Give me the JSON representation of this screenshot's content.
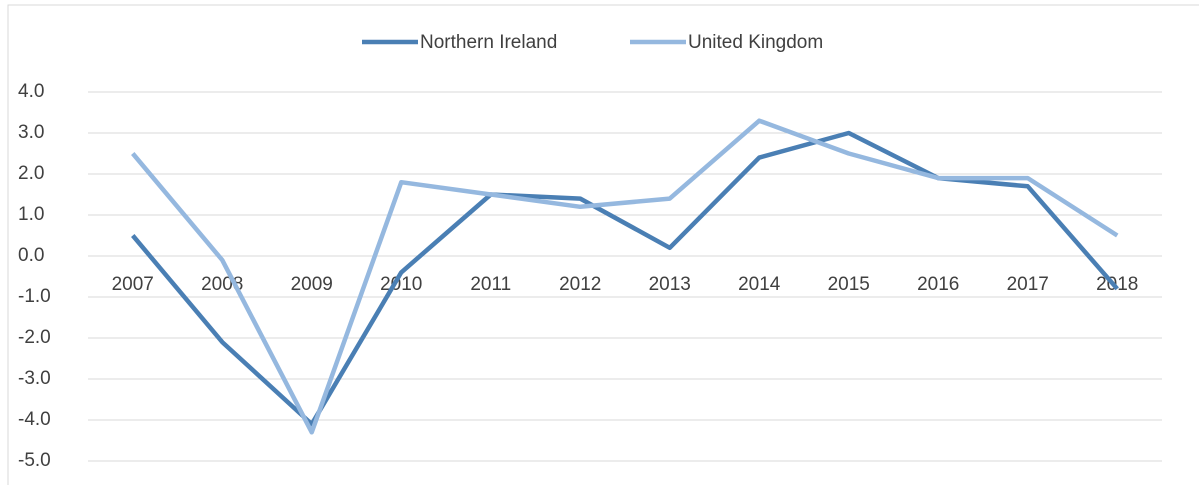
{
  "chart_data": {
    "type": "line",
    "categories": [
      "2007",
      "2008",
      "2009",
      "2010",
      "2011",
      "2012",
      "2013",
      "2014",
      "2015",
      "2016",
      "2017",
      "2018"
    ],
    "series": [
      {
        "name": "Northern Ireland",
        "color": "#4a7fb4",
        "values": [
          0.5,
          -2.1,
          -4.1,
          -0.4,
          1.5,
          1.4,
          0.2,
          2.4,
          3.0,
          1.9,
          1.7,
          -0.8
        ]
      },
      {
        "name": "United Kingdom",
        "color": "#95b8df",
        "values": [
          2.5,
          -0.1,
          -4.3,
          1.8,
          1.5,
          1.2,
          1.4,
          3.3,
          2.5,
          1.9,
          1.9,
          0.5
        ]
      }
    ],
    "ylim": [
      -5,
      4
    ],
    "yticks": [
      {
        "value": -5,
        "label": "-5.0"
      },
      {
        "value": -4,
        "label": "-4.0"
      },
      {
        "value": -3,
        "label": "-3.0"
      },
      {
        "value": -2,
        "label": "-2.0"
      },
      {
        "value": -1,
        "label": "-1.0"
      },
      {
        "value": 0,
        "label": "0.0"
      },
      {
        "value": 1,
        "label": "1.0"
      },
      {
        "value": 2,
        "label": "2.0"
      },
      {
        "value": 3,
        "label": "3.0"
      },
      {
        "value": 4,
        "label": "4.0"
      }
    ],
    "grid": true,
    "legend": "top"
  }
}
